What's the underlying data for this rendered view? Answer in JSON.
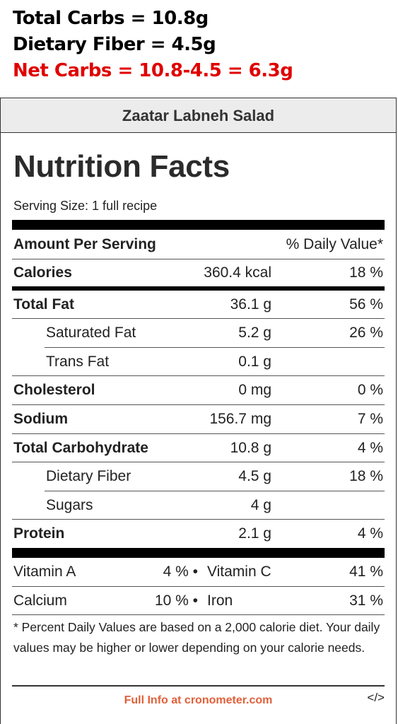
{
  "summary": {
    "total_carbs": "Total Carbs = 10.8g",
    "dietary_fiber": "Dietary Fiber = 4.5g",
    "net_carbs": "Net Carbs = 10.8-4.5 = 6.3g"
  },
  "recipe_title": "Zaatar Labneh Salad",
  "label": {
    "title": "Nutrition Facts",
    "serving_size": "Serving Size: 1 full recipe",
    "amount_header": "Amount Per Serving",
    "dv_header": "% Daily Value*",
    "rows": [
      {
        "name": "Calories",
        "amount": "360.4 kcal",
        "dv": "18 %"
      },
      {
        "name": "Total Fat",
        "amount": "36.1 g",
        "dv": "56 %"
      },
      {
        "name": "Saturated Fat",
        "amount": "5.2 g",
        "dv": "26 %"
      },
      {
        "name": "Trans Fat",
        "amount": "0.1 g",
        "dv": ""
      },
      {
        "name": "Cholesterol",
        "amount": "0 mg",
        "dv": "0 %"
      },
      {
        "name": "Sodium",
        "amount": "156.7 mg",
        "dv": "7 %"
      },
      {
        "name": "Total Carbohydrate",
        "amount": "10.8 g",
        "dv": "4 %"
      },
      {
        "name": "Dietary Fiber",
        "amount": "4.5 g",
        "dv": "18 %"
      },
      {
        "name": "Sugars",
        "amount": "4 g",
        "dv": ""
      },
      {
        "name": "Protein",
        "amount": "2.1 g",
        "dv": "4 %"
      }
    ],
    "vitamins": [
      {
        "left_name": "Vitamin A",
        "left_dv": "4 % •",
        "right_name": "Vitamin C",
        "right_dv": "41 %"
      },
      {
        "left_name": "Calcium",
        "left_dv": "10 % •",
        "right_name": "Iron",
        "right_dv": "31 %"
      }
    ],
    "footnote": "* Percent Daily Values are based on a 2,000 calorie diet. Your daily values may be higher or lower depending on your calorie needs.",
    "footer_link": "Full Info at cronometer.com",
    "embed_icon": "</>"
  },
  "colors": {
    "net_carbs": "#e00000",
    "footer_link": "#e0603a",
    "header_bg": "#ececec"
  }
}
